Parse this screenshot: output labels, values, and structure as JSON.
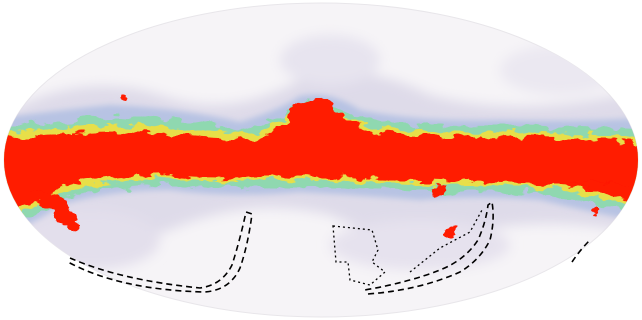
{
  "map": {
    "projection": "mollweide",
    "type": "all-sky-intensity-map",
    "colormap": [
      "#f7f5f7",
      "#dfdcea",
      "#b9c2e0",
      "#8fd8b8",
      "#9bd35a",
      "#e9e04a",
      "#ff1a00"
    ],
    "galactic_plane_color": "#ff1a00",
    "background_color": "#ffffff",
    "footprint_line_style": [
      "dashed",
      "dotted"
    ],
    "footprint_color": "#000000"
  },
  "regions": [
    {
      "name": "southern-survey-footprint-left",
      "style": "dashed"
    },
    {
      "name": "southern-survey-footprint-center-dotted",
      "style": "dotted"
    },
    {
      "name": "southern-survey-footprint-right",
      "style": "dashed"
    },
    {
      "name": "edge-footprint-right",
      "style": "dashed"
    }
  ]
}
